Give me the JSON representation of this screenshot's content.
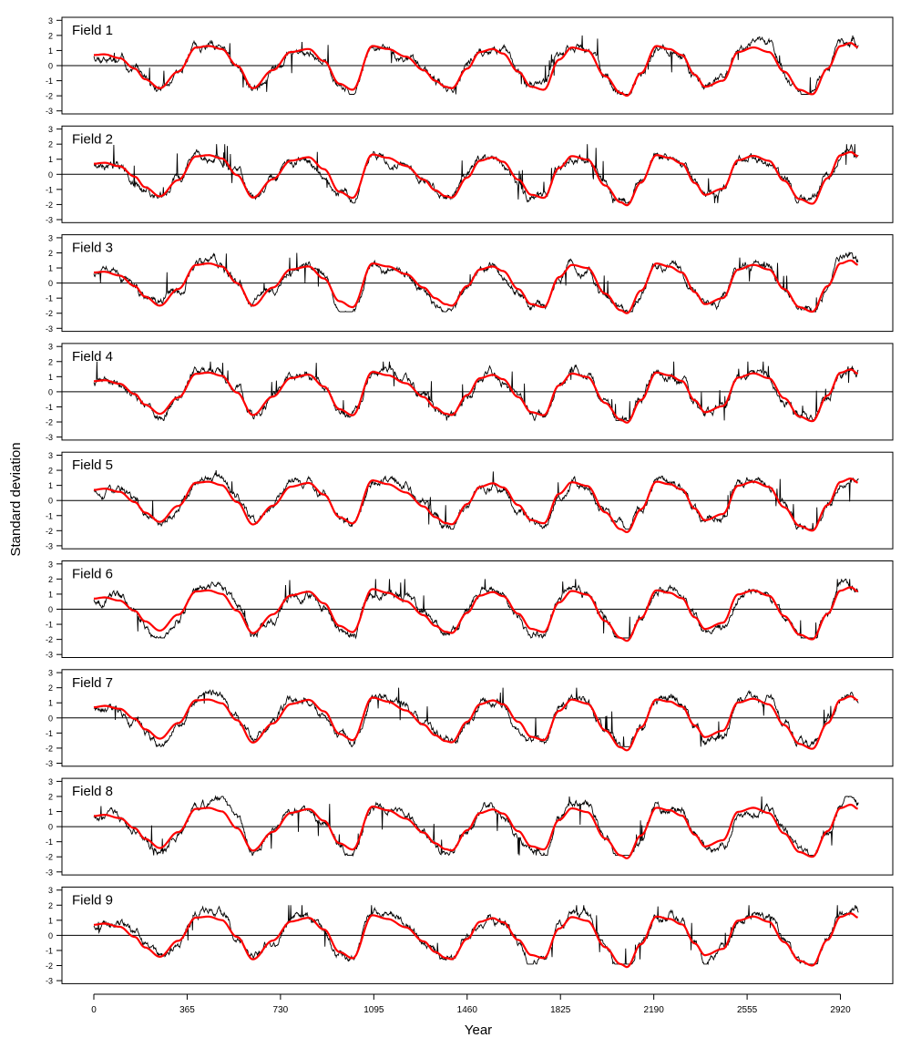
{
  "figure": {
    "ylabel": "Standard deviation",
    "xlabel": "Year"
  },
  "colors": {
    "observed": "#000000",
    "smoothed": "#ff0000",
    "zero_line": "#000000"
  },
  "chart_data": {
    "type": "line",
    "layout": "9 stacked panels sharing the x axis",
    "grid": false,
    "legend": "none",
    "xlabel": "Year",
    "ylabel": "Standard deviation",
    "xlim": [
      0,
      3000
    ],
    "x_ticks": [
      0,
      365,
      730,
      1095,
      1460,
      1825,
      2190,
      2555,
      2920
    ],
    "x_tick_labels": [
      "0",
      "365",
      "730",
      "1095",
      "1460",
      "1825",
      "2190",
      "2555",
      "2920"
    ],
    "ylim": [
      -3,
      3
    ],
    "y_ticks": [
      -3,
      -2,
      -1,
      0,
      1,
      2,
      3
    ],
    "y_tick_labels": [
      "-3",
      "-2",
      "-1",
      "0",
      "1",
      "2",
      "3"
    ],
    "reference_line_y": 0,
    "smoothed_knots": {
      "x": [
        0,
        40,
        100,
        160,
        200,
        258,
        330,
        400,
        450,
        500,
        560,
        622,
        700,
        770,
        840,
        900,
        960,
        1012,
        1090,
        1150,
        1220,
        1290,
        1335,
        1375,
        1400,
        1460,
        1510,
        1560,
        1600,
        1660,
        1710,
        1760,
        1820,
        1870,
        1930,
        2000,
        2060,
        2085,
        2140,
        2200,
        2250,
        2300,
        2350,
        2390,
        2460,
        2520,
        2580,
        2640,
        2700,
        2760,
        2810,
        2870,
        2920,
        2960,
        2990
      ],
      "y": [
        0.7,
        0.75,
        0.5,
        -0.2,
        -0.9,
        -1.5,
        -0.4,
        1.2,
        1.3,
        1.1,
        0,
        -1.5,
        -0.3,
        0.9,
        1.1,
        0.3,
        -1.2,
        -1.6,
        1.3,
        1.1,
        0.6,
        -0.3,
        -1.0,
        -1.4,
        -1.5,
        -0.2,
        0.9,
        1.1,
        0.8,
        -0.4,
        -1.4,
        -1.6,
        0.4,
        1.2,
        1.0,
        -0.7,
        -1.8,
        -2.0,
        -0.5,
        1.3,
        1.1,
        0.7,
        -0.6,
        -1.4,
        -1.0,
        0.9,
        1.2,
        0.9,
        -0.4,
        -1.6,
        -1.9,
        -0.2,
        1.3,
        1.5,
        1.2
      ]
    },
    "series": [
      {
        "name": "Field 1",
        "label": "Field 1",
        "seed": 11,
        "smooth_offset": 0.0,
        "obs_bias": 0.0
      },
      {
        "name": "Field 2",
        "label": "Field 2",
        "seed": 23,
        "smooth_offset": 0.05,
        "obs_bias": -0.05
      },
      {
        "name": "Field 3",
        "label": "Field 3",
        "seed": 37,
        "smooth_offset": 0.0,
        "obs_bias": 0.0
      },
      {
        "name": "Field 4",
        "label": "Field 4",
        "seed": 41,
        "smooth_offset": 0.05,
        "obs_bias": 0.05
      },
      {
        "name": "Field 5",
        "label": "Field 5",
        "seed": 53,
        "smooth_offset": 0.1,
        "obs_bias": 0.1
      },
      {
        "name": "Field 6",
        "label": "Field 6",
        "seed": 67,
        "smooth_offset": 0.1,
        "obs_bias": 0.15
      },
      {
        "name": "Field 7",
        "label": "Field 7",
        "seed": 79,
        "smooth_offset": 0.15,
        "obs_bias": 0.15
      },
      {
        "name": "Field 8",
        "label": "Field 8",
        "seed": 83,
        "smooth_offset": 0.1,
        "obs_bias": 0.2
      },
      {
        "name": "Field 9",
        "label": "Field 9",
        "seed": 97,
        "smooth_offset": 0.1,
        "obs_bias": 0.25
      }
    ]
  }
}
